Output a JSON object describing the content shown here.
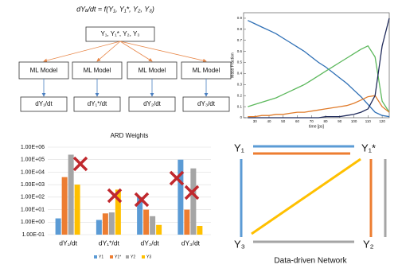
{
  "diagram": {
    "equation": "dYₐ/dt = f(Y₁, Y₁*, Y₂, Y₃)",
    "input": "Y₁, Y₁*, Y₂, Y₃",
    "models": [
      "ML Model",
      "ML Model",
      "ML Model",
      "ML Model"
    ],
    "outputs": [
      "dY₁/dt",
      "dY₁*/dt",
      "dY₂/dt",
      "dY₃/dt"
    ]
  },
  "chart_data": [
    {
      "type": "line",
      "x_label": "time [ps]",
      "y_label": "Mass Fraction",
      "x": [
        25,
        30,
        35,
        40,
        45,
        50,
        55,
        60,
        65,
        70,
        75,
        80,
        85,
        90,
        95,
        100,
        105,
        110,
        115,
        120,
        125
      ],
      "series": [
        {
          "color": "#2e6fb5",
          "values": [
            0.88,
            0.85,
            0.82,
            0.79,
            0.76,
            0.72,
            0.68,
            0.64,
            0.6,
            0.55,
            0.5,
            0.46,
            0.41,
            0.36,
            0.31,
            0.25,
            0.19,
            0.12,
            0.05,
            0.02,
            0.01
          ]
        },
        {
          "color": "#5cb85c",
          "values": [
            0.1,
            0.12,
            0.14,
            0.16,
            0.18,
            0.21,
            0.24,
            0.27,
            0.3,
            0.34,
            0.38,
            0.42,
            0.46,
            0.5,
            0.54,
            0.58,
            0.62,
            0.65,
            0.55,
            0.15,
            0.05
          ]
        },
        {
          "color": "#e07b2a",
          "values": [
            0.01,
            0.01,
            0.02,
            0.02,
            0.03,
            0.03,
            0.04,
            0.05,
            0.05,
            0.06,
            0.07,
            0.08,
            0.09,
            0.1,
            0.11,
            0.13,
            0.16,
            0.19,
            0.2,
            0.1,
            0.05
          ]
        },
        {
          "color": "#1f2a5a",
          "values": [
            0,
            0,
            0,
            0,
            0,
            0,
            0,
            0,
            0,
            0,
            0,
            0.01,
            0.01,
            0.01,
            0.02,
            0.03,
            0.05,
            0.08,
            0.2,
            0.65,
            0.9
          ]
        }
      ],
      "xlim": [
        22,
        125
      ],
      "xticks": [
        30,
        40,
        50,
        60,
        70,
        80,
        90,
        100,
        110,
        120
      ],
      "ylim": [
        0,
        0.95
      ],
      "yticks": [
        0,
        0.1,
        0.2,
        0.3,
        0.4,
        0.5,
        0.6,
        0.7,
        0.8,
        0.9
      ]
    },
    {
      "type": "bar",
      "title": "ARD Weights",
      "log_scale": true,
      "grid": true,
      "legend": "bottom",
      "categories": [
        "dY₁/dt",
        "dY₁*/dt",
        "dY₂/dt",
        "dY₃/dt"
      ],
      "series": [
        {
          "name": "Y1",
          "color": "#5b9bd5",
          "values": [
            2,
            1.5,
            100,
            100000
          ]
        },
        {
          "name": "Y1*",
          "color": "#ed7d31",
          "values": [
            4000,
            5,
            10,
            10
          ]
        },
        {
          "name": "Y2",
          "color": "#a5a5a5",
          "values": [
            250000,
            6,
            3,
            20000
          ]
        },
        {
          "name": "Y3",
          "color": "#ffc000",
          "values": [
            1000,
            400,
            0.6,
            0.5
          ]
        }
      ],
      "ylim": [
        0.1,
        1000000
      ],
      "yticks": [
        {
          "value": 0.1,
          "label": "1.00E-01"
        },
        {
          "value": 1,
          "label": "1.00E+00"
        },
        {
          "value": 10,
          "label": "1.00E+01"
        },
        {
          "value": 100,
          "label": "1.00E+02"
        },
        {
          "value": 1000,
          "label": "1.00E+03"
        },
        {
          "value": 10000,
          "label": "1.00E+04"
        },
        {
          "value": 100000,
          "label": "1.00E+05"
        },
        {
          "value": 1000000,
          "label": "1.00E+06"
        }
      ]
    }
  ],
  "network": {
    "nodes": [
      "Y₁",
      "Y₁*",
      "Y₃",
      "Y₂"
    ],
    "caption": "Data-driven Network"
  }
}
